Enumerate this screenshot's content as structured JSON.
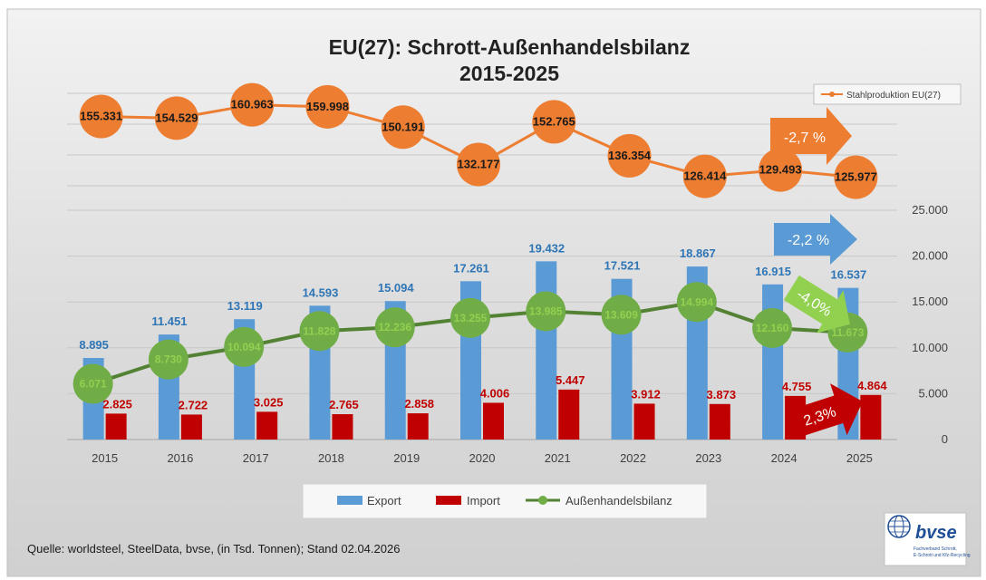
{
  "title_line1": "EU(27): Schrott-Außenhandelsbilanz",
  "title_line2": "2015-2025",
  "source": "Quelle: worldsteel, SteelData, bvse, (in Tsd. Tonnen); Stand 02.04.2026",
  "logo": {
    "word": "bvse",
    "sub1": "Fachverband Schrott,",
    "sub2": "E-Schrott und Kfz-Recycling"
  },
  "legend": {
    "export": "Export",
    "import": "Import",
    "balance": "Außenhandelsbilanz",
    "steel": "Stahlproduktion EU(27)"
  },
  "arrows": {
    "steel": "-2,7 %",
    "export": "-2,2 %",
    "balance": "-4,0%",
    "import": "2,3%"
  },
  "colors": {
    "export": "#5b9bd5",
    "import": "#c00000",
    "balance_line": "#548235",
    "balance_marker": "#70ad47",
    "balance_label": "#92d050",
    "steel": "#ed7d31"
  },
  "chart_data": {
    "type": "bar",
    "categories": [
      "2015",
      "2016",
      "2017",
      "2018",
      "2019",
      "2020",
      "2021",
      "2022",
      "2023",
      "2024",
      "2025"
    ],
    "title": "EU(27): Schrott-Außenhandelsbilanz 2015-2025",
    "ylim": [
      0,
      25000
    ],
    "yticks": [
      "0",
      "5.000",
      "10.000",
      "15.000",
      "20.000",
      "25.000"
    ],
    "series": [
      {
        "name": "Export",
        "type": "bar",
        "values": [
          8895,
          11451,
          13119,
          14593,
          15094,
          17261,
          19432,
          17521,
          18867,
          16915,
          16537
        ],
        "labels": [
          "8.895",
          "11.451",
          "13.119",
          "14.593",
          "15.094",
          "17.261",
          "19.432",
          "17.521",
          "18.867",
          "16.915",
          "16.537"
        ]
      },
      {
        "name": "Import",
        "type": "bar",
        "values": [
          2825,
          2722,
          3025,
          2765,
          2858,
          4006,
          5447,
          3912,
          3873,
          4755,
          4864
        ],
        "labels": [
          "2.825",
          "2.722",
          "3.025",
          "2.765",
          "2.858",
          "4.006",
          "5.447",
          "3.912",
          "3.873",
          "4.755",
          "4.864"
        ]
      },
      {
        "name": "Außenhandelsbilanz",
        "type": "line",
        "values": [
          6071,
          8730,
          10094,
          11828,
          12236,
          13255,
          13985,
          13609,
          14994,
          12160,
          11673
        ],
        "labels": [
          "6.071",
          "8.730",
          "10.094",
          "11.828",
          "12.236",
          "13.255",
          "13.985",
          "13.609",
          "14.994",
          "12.160",
          "11.673"
        ]
      },
      {
        "name": "Stahlproduktion EU(27)",
        "type": "line",
        "values": [
          155331,
          154529,
          160963,
          159998,
          150191,
          132177,
          152765,
          136354,
          126414,
          129493,
          125977
        ],
        "labels": [
          "155.331",
          "154.529",
          "160.963",
          "159.998",
          "150.191",
          "132.177",
          "152.765",
          "136.354",
          "126.414",
          "129.493",
          "125.977"
        ]
      }
    ],
    "legend": "bottom",
    "grid": true
  }
}
